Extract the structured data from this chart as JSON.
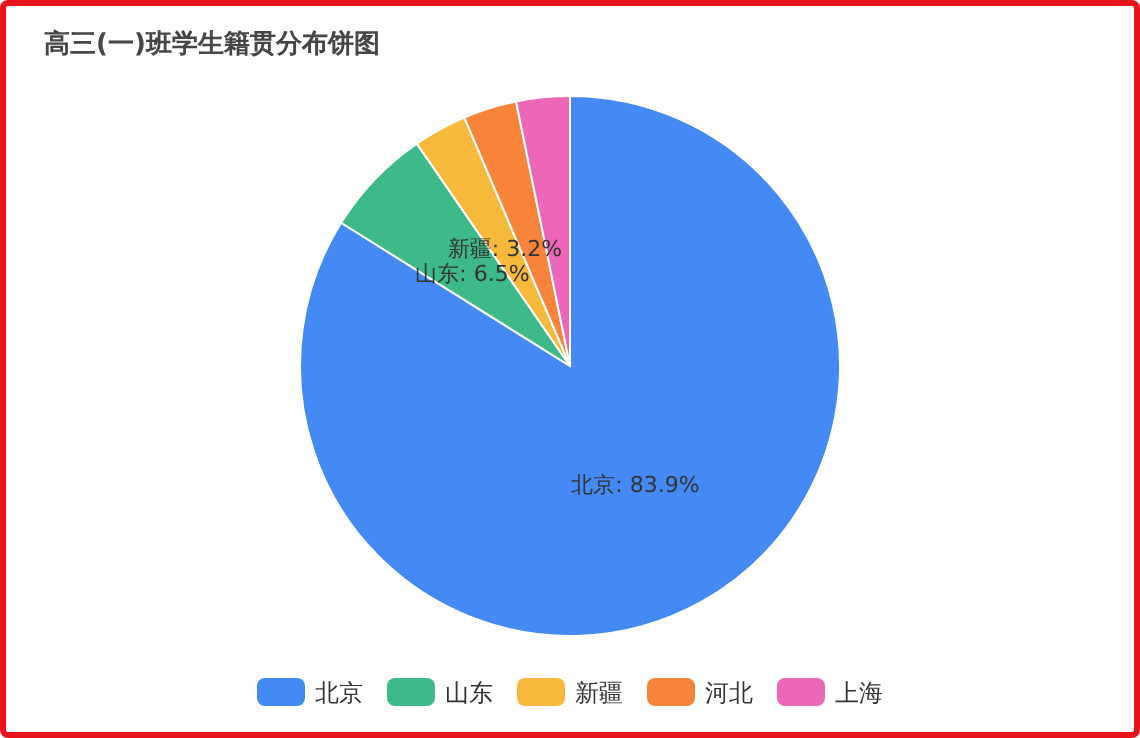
{
  "chart_data": {
    "type": "pie",
    "title": "高三(一)班学生籍贯分布饼图",
    "categories": [
      "北京",
      "山东",
      "新疆",
      "河北",
      "上海"
    ],
    "values": [
      83.9,
      6.5,
      3.2,
      3.2,
      3.2
    ],
    "colors": [
      "#4589f5",
      "#3db98a",
      "#f7b93b",
      "#f7843a",
      "#ec67b8"
    ],
    "value_labels": [
      "北京: 83.9%",
      "山东: 6.5%",
      "新疆: 3.2%",
      null,
      null
    ],
    "legend": "bottom"
  }
}
